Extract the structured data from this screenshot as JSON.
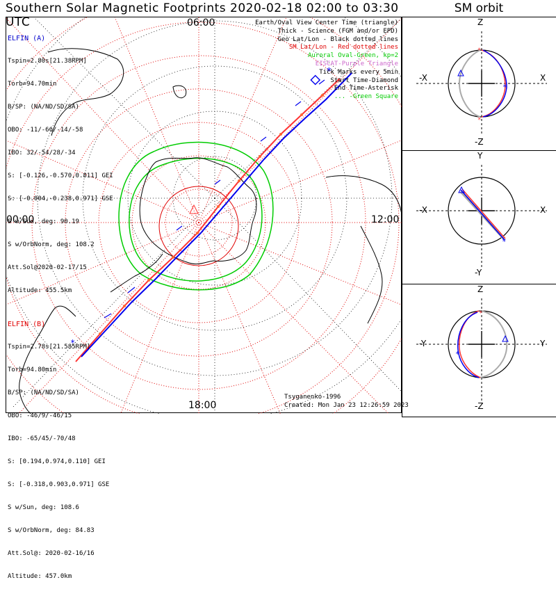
{
  "title": "Southern Solar Magnetic Footprints 2020-02-18 02:00 to 03:30 UTC",
  "sm_orbit_title": "SM orbit",
  "time_labels": {
    "top": "06:00",
    "left": "00:00",
    "right": "12:00",
    "bottom": "18:00"
  },
  "legend": [
    {
      "text": "Earth/Oval View Center Time (triangle)",
      "color": "#000000"
    },
    {
      "text": "Thick - Science (FGM and/or EPD)",
      "color": "#000000"
    },
    {
      "text": "Geo Lat/Lon - Black dotted lines",
      "color": "#000000"
    },
    {
      "text": "SM Lat/Lon - Red dotted lines",
      "color": "#e00000"
    },
    {
      "text": "Auroral Oval-Green, kp=2",
      "color": "#00cc00"
    },
    {
      "text": "EISCAT-Purple Triangle",
      "color": "#cc66cc"
    },
    {
      "text": "Tick Marks every 5min",
      "color": "#000000"
    },
    {
      "text": "Start Time-Diamond",
      "color": "#000000"
    },
    {
      "text": "End Time-Asterisk",
      "color": "#000000"
    },
    {
      "text": "... -Green Square",
      "color": "#00cc00"
    }
  ],
  "elfin_a": {
    "name": "ELFIN (A)",
    "lines": [
      "Tspin=2.80s[21.38RPM]",
      "Torb=94.70min",
      "B/SP: (NA/ND/SD/SA)",
      "OBO: -11/-66/-14/-58",
      "IBO: 32/-54/28/-34",
      "S: [-0.126,-0.570,0.811] GEI",
      "S: [-0.004,-0.238,0.971] GSE",
      "S w/Sun, deg: 90.19",
      "S w/OrbNorm, deg: 108.2",
      "Att.Sol@2020-02-17/15",
      "Altitude: 455.5km"
    ]
  },
  "elfin_b": {
    "name": "ELFIN (B)",
    "lines": [
      "Tspin=2.78s[21.585RPM]",
      "Torb=94.80min",
      "B/SP: (NA/ND/SD/SA)",
      "OBO: -46/9/-46/15",
      "IBO: -65/45/-70/48",
      "S: [0.194,0.974,0.110] GEI",
      "S: [-0.318,0.903,0.971] GSE",
      "S w/Sun, deg: 108.6",
      "S w/OrbNorm, deg: 84.83",
      "Att.Sol@: 2020-02-16/16",
      "Altitude: 457.0km"
    ]
  },
  "footer": {
    "author": "Tsyganenko-1996",
    "created": "Created: Mon Jan 23 12:26:59 2023"
  },
  "panels": [
    {
      "top": "Z",
      "bottom": "-Z",
      "left": "-X",
      "right": "X"
    },
    {
      "top": "Y",
      "bottom": "-Y",
      "left": "-X",
      "right": "X"
    },
    {
      "top": "Z",
      "bottom": "-Z",
      "left": "-Y",
      "right": "Y"
    }
  ],
  "colors": {
    "elfin_a": "#0000ee",
    "elfin_b": "#ff3333",
    "sm_grid": "#e00000",
    "oval": "#00cc00",
    "eiscat": "#cc66cc"
  }
}
